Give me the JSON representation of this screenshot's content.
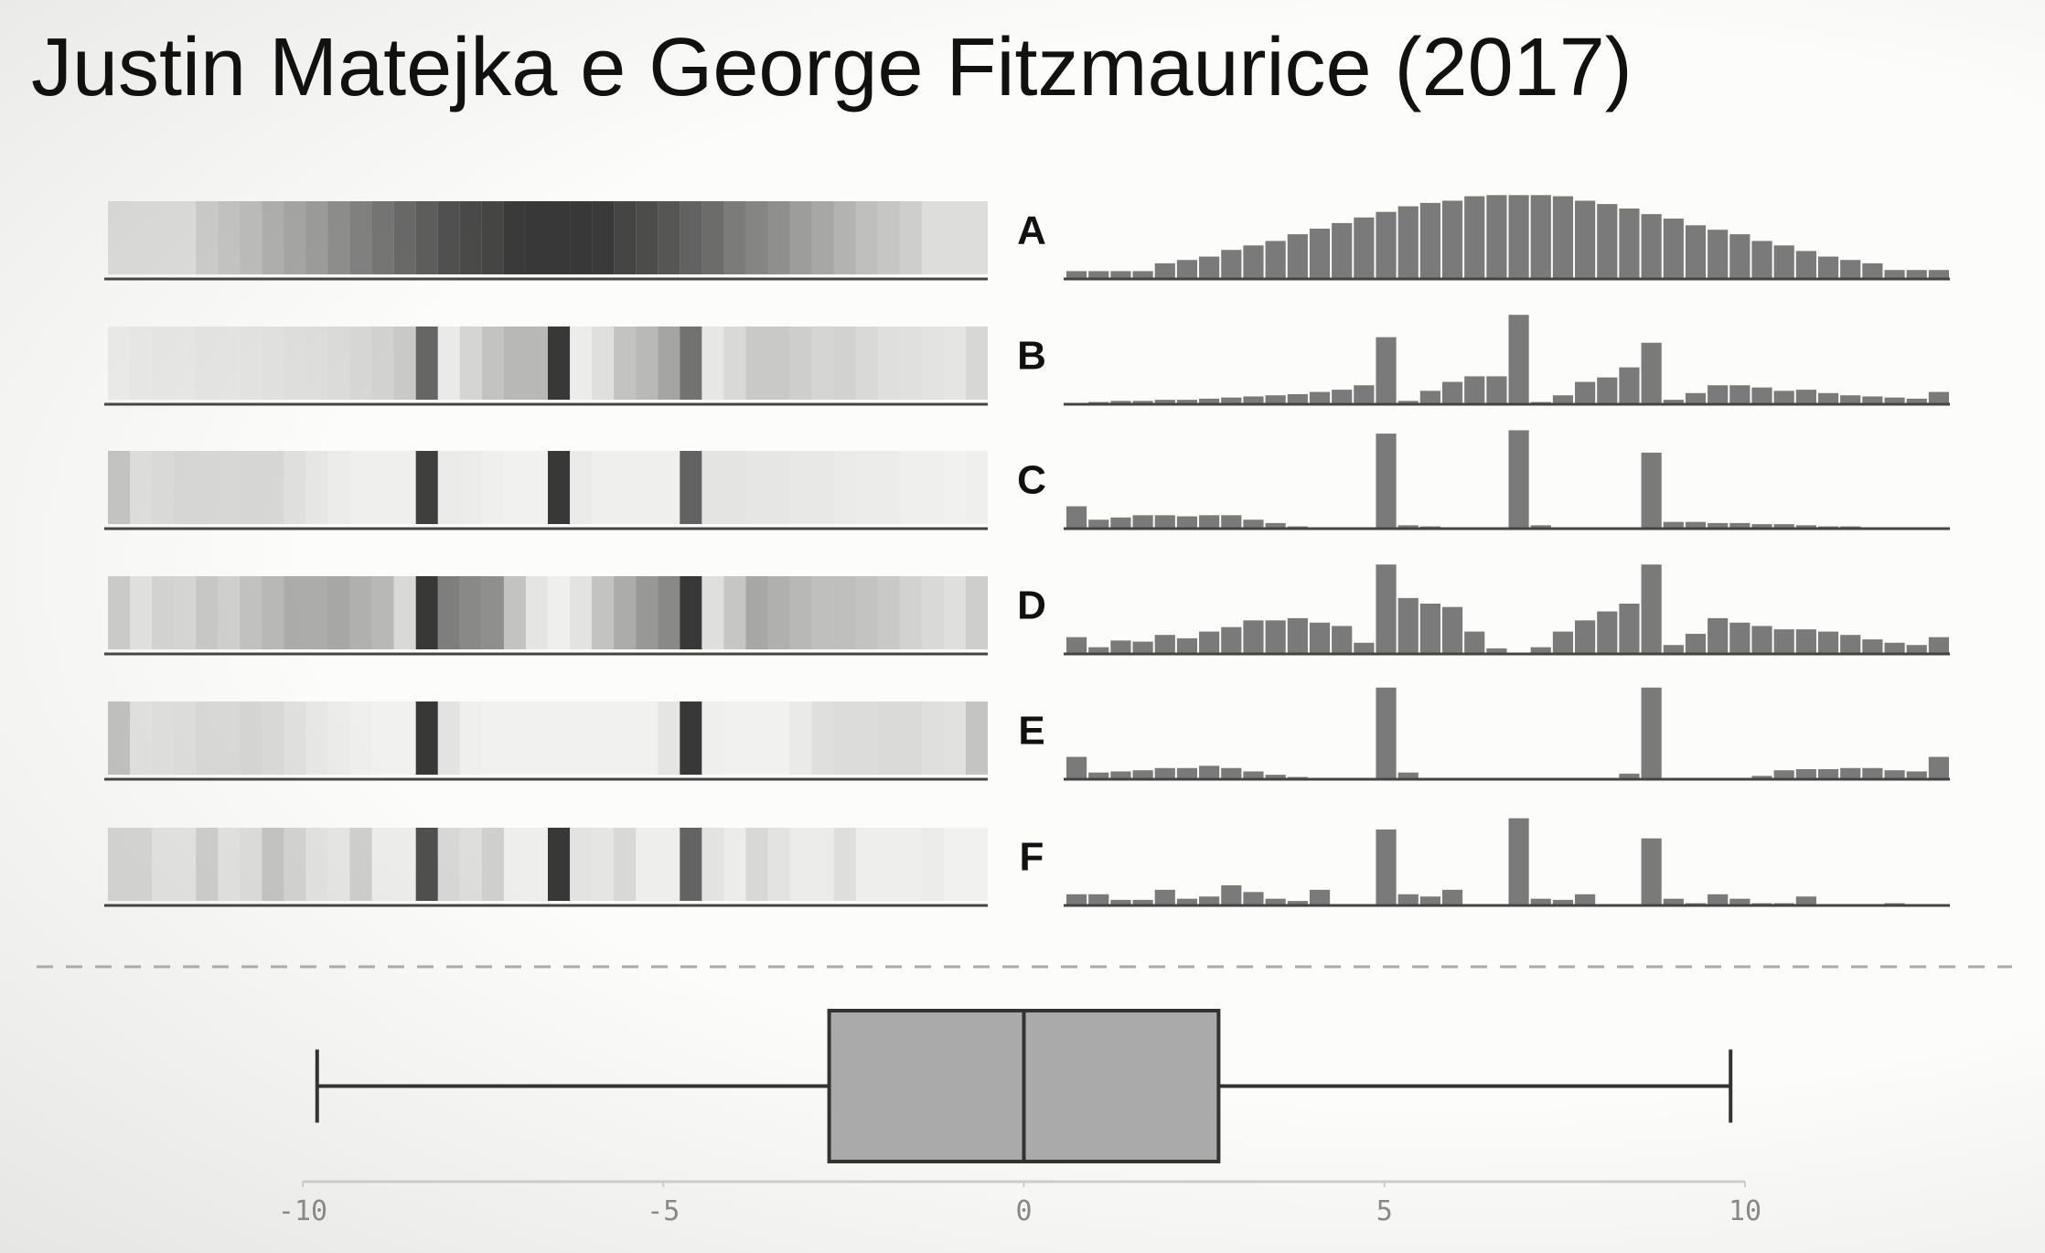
{
  "title": "Justin Matejka e George Fitzmaurice (2017)",
  "chart_data": [
    {
      "type": "histogram",
      "label": "A",
      "color": "#7a7a7a",
      "ylim": [
        0,
        90
      ],
      "bins": [
        -10,
        -9.5,
        -9,
        -8.5,
        -8,
        -7.5,
        -7,
        -6.5,
        -6,
        -5.5,
        -5,
        -4.5,
        -4,
        -3.5,
        -3,
        -2.5,
        -2,
        -1.5,
        -1,
        -0.5,
        0,
        0.5,
        1,
        1.5,
        2,
        2.5,
        3,
        3.5,
        4,
        4.5,
        5,
        5.5,
        6,
        6.5,
        7,
        7.5,
        8,
        8.5,
        9,
        9.5,
        10
      ],
      "counts": [
        7,
        7,
        7,
        7,
        14,
        17,
        20,
        26,
        30,
        34,
        40,
        45,
        50,
        55,
        60,
        65,
        68,
        70,
        74,
        75,
        75,
        75,
        74,
        70,
        67,
        63,
        58,
        54,
        48,
        44,
        40,
        34,
        30,
        25,
        20,
        17,
        14,
        8,
        8,
        8
      ]
    },
    {
      "type": "histogram",
      "label": "B",
      "color": "#7a7a7a",
      "ylim": [
        0,
        90
      ],
      "bins": [
        -10,
        -9.5,
        -9,
        -8.5,
        -8,
        -7.5,
        -7,
        -6.5,
        -6,
        -5.5,
        -5,
        -4.5,
        -4,
        -3.5,
        -3,
        -2.5,
        -2,
        -1.5,
        -1,
        -0.5,
        0,
        0.5,
        1,
        1.5,
        2,
        2.5,
        3,
        3.5,
        4,
        4.5,
        5,
        5.5,
        6,
        6.5,
        7,
        7.5,
        8,
        8.5,
        9,
        9.5,
        10
      ],
      "counts": [
        1,
        2,
        3,
        3,
        4,
        4,
        5,
        6,
        7,
        8,
        9,
        11,
        13,
        17,
        60,
        3,
        12,
        20,
        25,
        25,
        80,
        2,
        8,
        20,
        24,
        33,
        55,
        4,
        10,
        17,
        17,
        15,
        12,
        13,
        10,
        8,
        7,
        6,
        5,
        11
      ]
    },
    {
      "type": "histogram",
      "label": "C",
      "color": "#7a7a7a",
      "ylim": [
        0,
        90
      ],
      "bins": [
        -10,
        -9.5,
        -9,
        -8.5,
        -8,
        -7.5,
        -7,
        -6.5,
        -6,
        -5.5,
        -5,
        -4.5,
        -4,
        -3.5,
        -3,
        -2.5,
        -2,
        -1.5,
        -1,
        -0.5,
        0,
        0.5,
        1,
        1.5,
        2,
        2.5,
        3,
        3.5,
        4,
        4.5,
        5,
        5.5,
        6,
        6.5,
        7,
        7.5,
        8,
        8.5,
        9,
        9.5,
        10
      ],
      "counts": [
        20,
        8,
        10,
        12,
        12,
        11,
        12,
        12,
        8,
        5,
        2,
        1,
        1,
        1,
        85,
        3,
        2,
        1,
        0,
        0,
        88,
        3,
        1,
        1,
        1,
        1,
        68,
        6,
        6,
        5,
        5,
        4,
        4,
        3,
        2,
        2,
        1,
        1,
        0,
        1
      ]
    },
    {
      "type": "histogram",
      "label": "D",
      "color": "#7a7a7a",
      "ylim": [
        0,
        90
      ],
      "bins": [
        -10,
        -9.5,
        -9,
        -8.5,
        -8,
        -7.5,
        -7,
        -6.5,
        -6,
        -5.5,
        -5,
        -4.5,
        -4,
        -3.5,
        -3,
        -2.5,
        -2,
        -1.5,
        -1,
        -0.5,
        0,
        0.5,
        1,
        1.5,
        2,
        2.5,
        3,
        3.5,
        4,
        4.5,
        5,
        5.5,
        6,
        6.5,
        7,
        7.5,
        8,
        8.5,
        9,
        9.5,
        10
      ],
      "counts": [
        15,
        6,
        12,
        11,
        17,
        14,
        20,
        24,
        30,
        30,
        32,
        28,
        25,
        10,
        80,
        50,
        45,
        42,
        20,
        5,
        1,
        6,
        20,
        30,
        38,
        45,
        80,
        8,
        18,
        32,
        28,
        25,
        22,
        22,
        20,
        17,
        13,
        10,
        8,
        15
      ]
    },
    {
      "type": "histogram",
      "label": "E",
      "color": "#7a7a7a",
      "ylim": [
        0,
        90
      ],
      "bins": [
        -10,
        -9.5,
        -9,
        -8.5,
        -8,
        -7.5,
        -7,
        -6.5,
        -6,
        -5.5,
        -5,
        -4.5,
        -4,
        -3.5,
        -3,
        -2.5,
        -2,
        -1.5,
        -1,
        -0.5,
        0,
        0.5,
        1,
        1.5,
        2,
        2.5,
        3,
        3.5,
        4,
        4.5,
        5,
        5.5,
        6,
        6.5,
        7,
        7.5,
        8,
        8.5,
        9,
        9.5,
        10
      ],
      "counts": [
        20,
        6,
        7,
        8,
        10,
        10,
        12,
        10,
        7,
        4,
        2,
        1,
        0,
        0,
        82,
        6,
        1,
        0,
        0,
        0,
        0,
        0,
        0,
        0,
        0,
        5,
        82,
        1,
        0,
        0,
        0,
        3,
        8,
        9,
        9,
        10,
        10,
        8,
        7,
        20
      ]
    },
    {
      "type": "histogram",
      "label": "F",
      "color": "#7a7a7a",
      "ylim": [
        0,
        90
      ],
      "bins": [
        -10,
        -9.5,
        -9,
        -8.5,
        -8,
        -7.5,
        -7,
        -6.5,
        -6,
        -5.5,
        -5,
        -4.5,
        -4,
        -3.5,
        -3,
        -2.5,
        -2,
        -1.5,
        -1,
        -0.5,
        0,
        0.5,
        1,
        1.5,
        2,
        2.5,
        3,
        3.5,
        4,
        4.5,
        5,
        5.5,
        6,
        6.5,
        7,
        7.5,
        8,
        8.5,
        9,
        9.5,
        10
      ],
      "counts": [
        10,
        10,
        5,
        5,
        14,
        6,
        8,
        18,
        12,
        6,
        4,
        14,
        1,
        1,
        68,
        10,
        8,
        14,
        1,
        1,
        78,
        6,
        5,
        10,
        1,
        1,
        60,
        6,
        2,
        10,
        6,
        2,
        2,
        8,
        1,
        1,
        1,
        2,
        0,
        0
      ]
    },
    {
      "type": "box",
      "color": "#aaaaaa",
      "min": -9.8,
      "q1": -2.7,
      "median": 0,
      "q3": 2.7,
      "max": 9.8,
      "xlim": [
        -10,
        10
      ],
      "xticks": [
        -10,
        -5,
        0,
        5,
        10
      ]
    }
  ]
}
